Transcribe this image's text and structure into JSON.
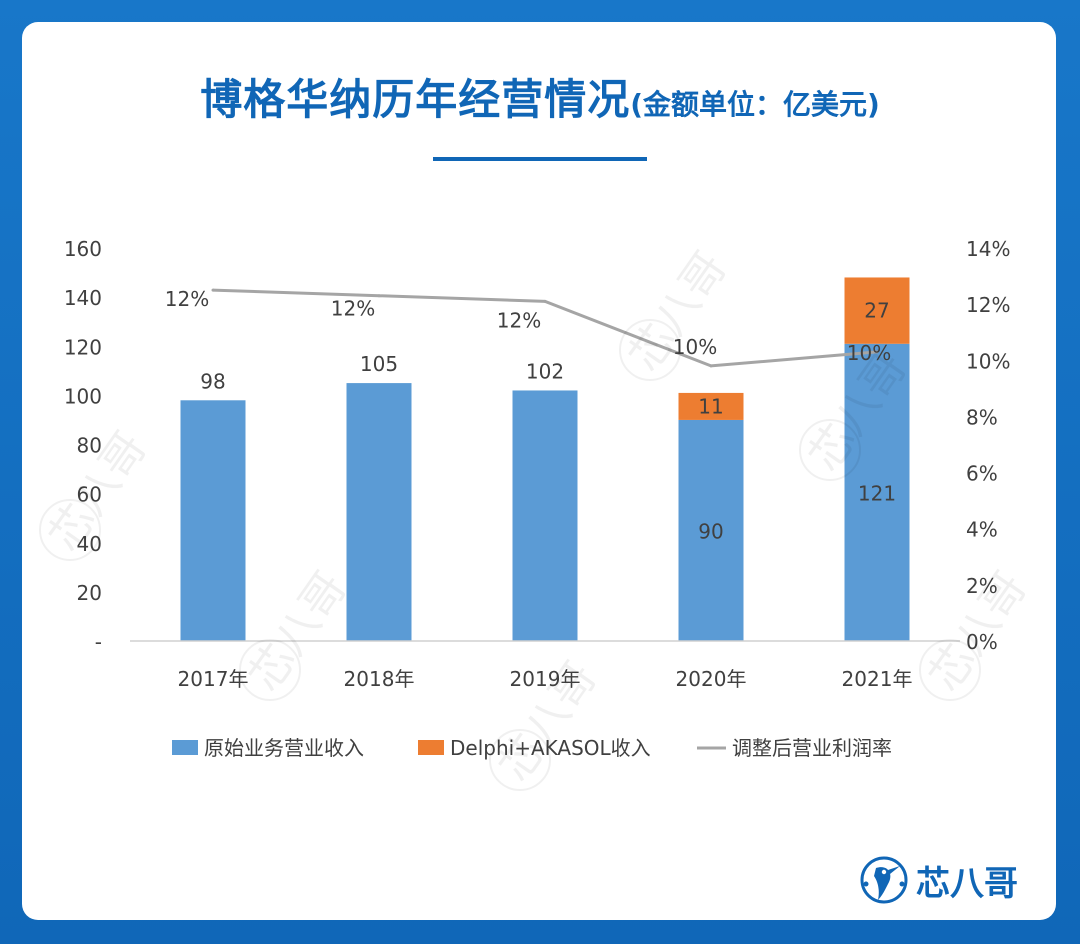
{
  "title": "博格华纳历年经营情况",
  "title_unit": "(金额单位：亿美元)",
  "brand": "芯八哥",
  "watermark": "芯八哥",
  "chart_data": {
    "type": "bar",
    "stacked": true,
    "categories": [
      "2017年",
      "2018年",
      "2019年",
      "2020年",
      "2021年"
    ],
    "series": [
      {
        "name": "原始业务营业收入",
        "type": "bar",
        "axis": "left",
        "color": "#5b9bd5",
        "values": [
          98,
          105,
          102,
          90,
          121
        ]
      },
      {
        "name": "Delphi+AKASOL收入",
        "type": "bar",
        "axis": "left",
        "color": "#ed7d31",
        "values": [
          null,
          null,
          null,
          11,
          27
        ]
      },
      {
        "name": "调整后营业利润率",
        "type": "line",
        "axis": "right",
        "color": "#a5a5a5",
        "values": [
          0.125,
          0.123,
          0.121,
          0.098,
          0.103
        ],
        "labels": [
          "12%",
          "12%",
          "12%",
          "10%",
          "10%"
        ]
      }
    ],
    "bar_labels": {
      "原始业务营业收入": [
        "98",
        "105",
        "102",
        "90",
        "121"
      ],
      "Delphi+AKASOL收入": [
        "",
        "",
        "",
        "11",
        "27"
      ]
    },
    "ylim_left": [
      0,
      160
    ],
    "yticks_left": [
      "-",
      "20",
      "40",
      "60",
      "80",
      "100",
      "120",
      "140",
      "160"
    ],
    "ylim_right": [
      0,
      0.14
    ],
    "yticks_right": [
      "0%",
      "2%",
      "4%",
      "6%",
      "8%",
      "10%",
      "12%",
      "14%"
    ],
    "grid": false,
    "legend_position": "bottom"
  }
}
